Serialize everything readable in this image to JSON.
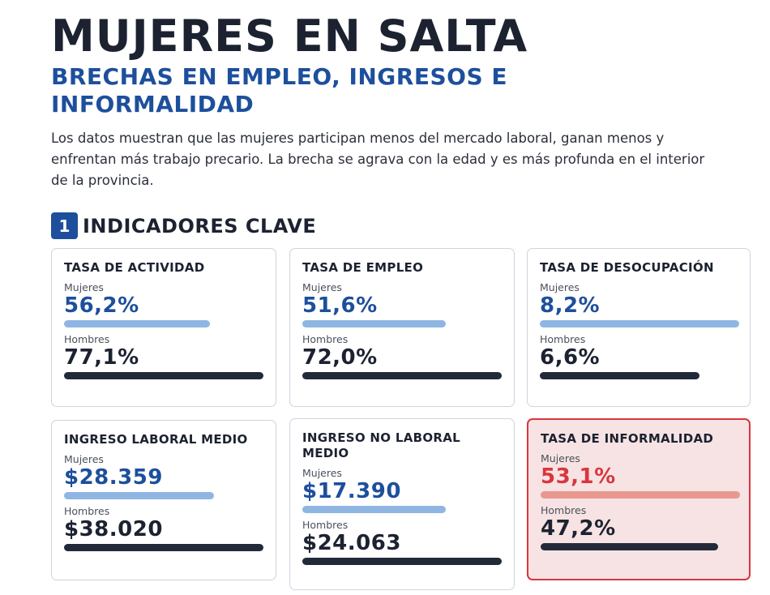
{
  "header": {
    "title": "MUJERES EN SALTA",
    "subtitle": "BRECHAS EN EMPLEO, INGRESOS E INFORMALIDAD",
    "intro": "Los datos muestran que las mujeres participan menos del mercado laboral, ganan menos y enfrentan más trabajo precario. La brecha se agrava con la edad y es más profunda en el interior de la provincia."
  },
  "section": {
    "number": "1",
    "title": "INDICADORES CLAVE"
  },
  "labels": {
    "women": "Mujeres",
    "men": "Hombres"
  },
  "colors": {
    "accent": "#1d4f9c",
    "women_bar": "#8fb6e3",
    "men_bar": "#222a3a",
    "alert": "#d9363e",
    "alert_bg": "#f7e3e3"
  },
  "cards": [
    {
      "title": "TASA DE ACTIVIDAD",
      "women_value": "56,2%",
      "men_value": "77,1%",
      "women_fill": 0.73,
      "men_fill": 1.0,
      "highlight": false
    },
    {
      "title": "TASA DE EMPLEO",
      "women_value": "51,6%",
      "men_value": "72,0%",
      "women_fill": 0.72,
      "men_fill": 1.0,
      "highlight": false
    },
    {
      "title": "TASA DE DESOCUPACIÓN",
      "women_value": "8,2%",
      "men_value": "6,6%",
      "women_fill": 1.0,
      "men_fill": 0.8,
      "highlight": false
    },
    {
      "title": "INGRESO LABORAL MEDIO",
      "women_value": "$28.359",
      "men_value": "$38.020",
      "women_fill": 0.75,
      "men_fill": 1.0,
      "highlight": false
    },
    {
      "title": "INGRESO NO LABORAL MEDIO",
      "women_value": "$17.390",
      "men_value": "$24.063",
      "women_fill": 0.72,
      "men_fill": 1.0,
      "highlight": false
    },
    {
      "title": "TASA DE INFORMALIDAD",
      "women_value": "53,1%",
      "men_value": "47,2%",
      "women_fill": 1.0,
      "men_fill": 0.89,
      "highlight": true
    }
  ]
}
